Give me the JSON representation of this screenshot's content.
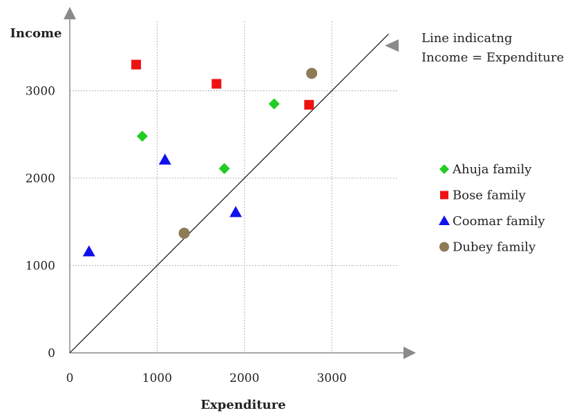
{
  "chart_data": {
    "type": "scatter",
    "xlabel": "Expenditure",
    "ylabel": "Income",
    "x_ticks": [
      0,
      1000,
      2000,
      3000
    ],
    "y_ticks": [
      0,
      1000,
      2000,
      3000
    ],
    "xlim": [
      0,
      3950
    ],
    "ylim": [
      0,
      3950
    ],
    "grid": "dotted",
    "legend_position": "right",
    "reference_line": {
      "from": [
        0,
        0
      ],
      "to": [
        3650,
        3650
      ],
      "label": [
        "Line indicatng",
        "Income = Expenditure"
      ]
    },
    "series": [
      {
        "name": "Ahuja family",
        "marker": "diamond",
        "color": "#22cc22",
        "points": [
          [
            830,
            2480
          ],
          [
            1770,
            2110
          ],
          [
            2340,
            2850
          ]
        ]
      },
      {
        "name": "Bose family",
        "marker": "square",
        "color": "#ee1111",
        "points": [
          [
            760,
            3300
          ],
          [
            1680,
            3080
          ],
          [
            2740,
            2840
          ]
        ]
      },
      {
        "name": "Coomar family",
        "marker": "triangle",
        "color": "#1111ee",
        "points": [
          [
            220,
            1160
          ],
          [
            1090,
            2210
          ],
          [
            1900,
            1610
          ]
        ]
      },
      {
        "name": "Dubey family",
        "marker": "circle",
        "color": "#8c7b55",
        "points": [
          [
            1310,
            1370
          ],
          [
            2770,
            3200
          ]
        ]
      }
    ]
  }
}
